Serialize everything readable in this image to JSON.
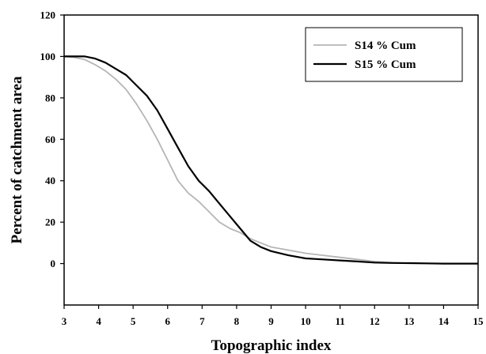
{
  "chart_data": {
    "type": "line",
    "title": "",
    "xlabel": "Topographic index",
    "ylabel": "Percent of catchment area",
    "xlim": [
      3,
      15
    ],
    "ylim": [
      -20,
      120
    ],
    "xticks": [
      "3",
      "4",
      "5",
      "6",
      "7",
      "8",
      "9",
      "10",
      "11",
      "12",
      "13",
      "14",
      "15"
    ],
    "yticks": [
      "0",
      "20",
      "40",
      "60",
      "80",
      "100",
      "120"
    ],
    "grid": false,
    "legend_position": "top-right",
    "series": [
      {
        "name": "S14 % Cum",
        "color": "#b5b5b5",
        "x": [
          3.0,
          3.3,
          3.6,
          3.9,
          4.2,
          4.5,
          4.8,
          5.1,
          5.4,
          5.7,
          6.0,
          6.3,
          6.6,
          6.9,
          7.2,
          7.5,
          7.8,
          8.1,
          8.4,
          8.7,
          9.0,
          9.5,
          10.0,
          10.5,
          11.0,
          11.5,
          12.0,
          12.5,
          13.0,
          13.5,
          14.0,
          14.5,
          15.0
        ],
        "y": [
          100,
          99.5,
          98.5,
          96,
          93,
          89,
          84,
          77,
          69,
          60,
          50,
          40,
          34,
          30,
          25,
          20,
          17,
          15,
          12,
          10,
          8,
          6.5,
          5,
          4,
          3,
          2,
          1,
          0.5,
          0.2,
          0.1,
          0,
          0,
          0
        ]
      },
      {
        "name": "S15 % Cum",
        "color": "#000000",
        "x": [
          3.0,
          3.3,
          3.6,
          3.9,
          4.2,
          4.5,
          4.8,
          5.1,
          5.4,
          5.7,
          6.0,
          6.3,
          6.6,
          6.9,
          7.2,
          7.5,
          7.8,
          8.1,
          8.4,
          8.7,
          9.0,
          9.5,
          10.0,
          10.5,
          11.0,
          11.5,
          12.0,
          12.5,
          13.0,
          13.5,
          14.0,
          14.5,
          15.0
        ],
        "y": [
          100,
          100,
          100,
          99,
          97,
          94,
          91,
          86,
          81,
          74,
          65,
          56,
          47,
          40,
          35,
          29,
          23,
          17,
          11,
          8,
          6,
          4,
          2.5,
          2,
          1.5,
          1,
          0.5,
          0.3,
          0.2,
          0.1,
          0,
          0,
          0
        ]
      }
    ]
  }
}
